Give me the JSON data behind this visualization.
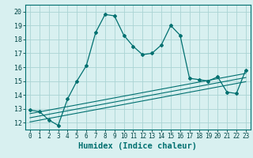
{
  "title": "",
  "xlabel": "Humidex (Indice chaleur)",
  "ylabel": "",
  "xlim": [
    -0.5,
    23.5
  ],
  "ylim": [
    11.5,
    20.5
  ],
  "xticks": [
    0,
    1,
    2,
    3,
    4,
    5,
    6,
    7,
    8,
    9,
    10,
    11,
    12,
    13,
    14,
    15,
    16,
    17,
    18,
    19,
    20,
    21,
    22,
    23
  ],
  "yticks": [
    12,
    13,
    14,
    15,
    16,
    17,
    18,
    19,
    20
  ],
  "main_line_x": [
    0,
    1,
    2,
    3,
    4,
    5,
    6,
    7,
    8,
    9,
    10,
    11,
    12,
    13,
    14,
    15,
    16,
    17,
    18,
    19,
    20,
    21,
    22,
    23
  ],
  "main_line_y": [
    12.9,
    12.8,
    12.2,
    11.8,
    13.7,
    15.0,
    16.1,
    18.5,
    19.8,
    19.7,
    18.3,
    17.5,
    16.9,
    17.0,
    17.6,
    19.0,
    18.3,
    15.2,
    15.1,
    15.0,
    15.3,
    14.2,
    14.1,
    15.8
  ],
  "line_color": "#007070",
  "bg_color": "#d8f0f0",
  "grid_color": "#aad4d4",
  "regression_lines": [
    {
      "x0": 0,
      "y0": 12.65,
      "x1": 23,
      "y1": 15.55
    },
    {
      "x0": 0,
      "y0": 12.35,
      "x1": 23,
      "y1": 15.25
    },
    {
      "x0": 0,
      "y0": 12.05,
      "x1": 23,
      "y1": 14.95
    }
  ],
  "tick_fontsize": 5.5,
  "xlabel_fontsize": 7.5
}
